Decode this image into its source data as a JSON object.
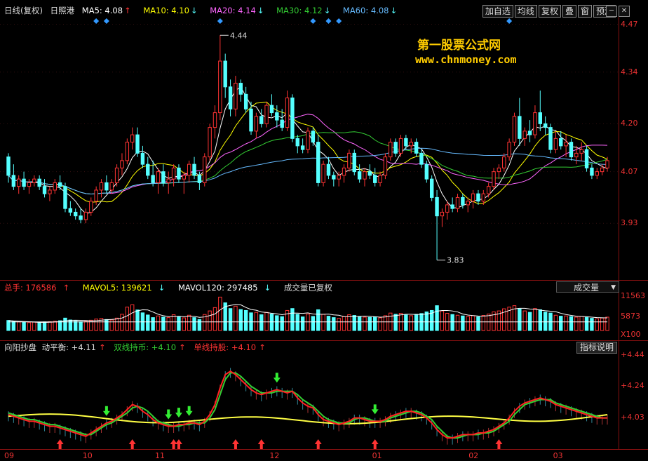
{
  "header": {
    "period": "日线(复权)",
    "stock": "日照港",
    "ma5": "MA5: 4.08",
    "ma10": "MA10: 4.10",
    "ma20": "MA20: 4.14",
    "ma30": "MA30: 4.12",
    "ma60": "MA60: 4.08",
    "arrow_up": "↑",
    "arrow_down": "↓"
  },
  "toolbar": {
    "add_watch": "加自选",
    "ma_lines": "均线",
    "adjust": "复权",
    "overlay": "叠",
    "window": "窗",
    "forecast": "预测"
  },
  "watermark": {
    "line1": "第一股票公式网",
    "line2": "www.chnmoney.com"
  },
  "volume_panel": {
    "total": "总手: 176586",
    "mavol5": "MAVOL5: 139621",
    "mavol120": "MAVOL120: 297485",
    "note": "成交量已复权",
    "selector": "成交量",
    "axis": [
      "11563",
      "5873",
      "X100"
    ]
  },
  "indicator_panel": {
    "name": "向阳抄盘",
    "dyn": "动平衡: +4.11",
    "double": "双线持币: +4.10",
    "single": "单线持股: +4.10",
    "explain_button": "指标说明",
    "axis": [
      "+4.44",
      "+4.24",
      "+4.03"
    ]
  },
  "x_labels": [
    "09",
    "10",
    "11",
    "12",
    "01",
    "02",
    "03"
  ],
  "colors": {
    "up": "#ff3333",
    "down": "#55ffff",
    "ma5": "#ffffff",
    "ma10": "#ffff00",
    "ma20": "#ff66ff",
    "ma30": "#33cc33",
    "ma60": "#66bbff",
    "panel_border": "#8b1111",
    "diamond": "#3399ff"
  },
  "chart_data": {
    "type": "candlestick",
    "ylim": [
      3.78,
      4.49
    ],
    "yticks": [
      4.47,
      4.34,
      4.2,
      4.07,
      3.93
    ],
    "max_marker": "4.44",
    "min_marker": "3.83",
    "candles": [
      [
        4.11,
        4.12,
        4.04,
        4.06
      ],
      [
        4.06,
        4.09,
        4.02,
        4.03
      ],
      [
        4.03,
        4.06,
        4.01,
        4.05
      ],
      [
        4.05,
        4.07,
        4.02,
        4.03
      ],
      [
        4.03,
        4.05,
        4.01,
        4.04
      ],
      [
        4.04,
        4.06,
        4.03,
        4.05
      ],
      [
        4.05,
        4.06,
        4.02,
        4.03
      ],
      [
        4.03,
        4.05,
        4.0,
        4.01
      ],
      [
        4.01,
        4.03,
        3.99,
        4.02
      ],
      [
        4.02,
        4.05,
        4.01,
        4.04
      ],
      [
        4.04,
        4.06,
        4.02,
        4.03
      ],
      [
        4.03,
        4.04,
        3.96,
        3.97
      ],
      [
        3.97,
        3.99,
        3.95,
        3.96
      ],
      [
        3.96,
        3.97,
        3.94,
        3.95
      ],
      [
        3.95,
        3.97,
        3.93,
        3.94
      ],
      [
        3.94,
        3.97,
        3.93,
        3.96
      ],
      [
        3.96,
        4.0,
        3.95,
        3.99
      ],
      [
        3.99,
        4.03,
        3.98,
        4.02
      ],
      [
        4.02,
        4.05,
        4.0,
        4.04
      ],
      [
        4.04,
        4.06,
        4.01,
        4.02
      ],
      [
        4.02,
        4.05,
        4.01,
        4.04
      ],
      [
        4.04,
        4.09,
        4.03,
        4.08
      ],
      [
        4.08,
        4.12,
        4.06,
        4.1
      ],
      [
        4.1,
        4.16,
        4.09,
        4.15
      ],
      [
        4.15,
        4.19,
        4.13,
        4.17
      ],
      [
        4.17,
        4.19,
        4.11,
        4.12
      ],
      [
        4.12,
        4.14,
        4.08,
        4.09
      ],
      [
        4.09,
        4.11,
        4.05,
        4.06
      ],
      [
        4.06,
        4.1,
        4.03,
        4.04
      ],
      [
        4.04,
        4.08,
        4.01,
        4.07
      ],
      [
        4.07,
        4.09,
        4.03,
        4.04
      ],
      [
        4.04,
        4.07,
        4.01,
        4.05
      ],
      [
        4.05,
        4.09,
        4.03,
        4.08
      ],
      [
        4.08,
        4.09,
        4.04,
        4.05
      ],
      [
        4.05,
        4.07,
        4.01,
        4.06
      ],
      [
        4.06,
        4.1,
        4.04,
        4.09
      ],
      [
        4.09,
        4.11,
        4.05,
        4.06
      ],
      [
        4.06,
        4.07,
        4.02,
        4.04
      ],
      [
        4.04,
        4.12,
        4.03,
        4.11
      ],
      [
        4.11,
        4.2,
        4.1,
        4.19
      ],
      [
        4.19,
        4.25,
        4.16,
        4.23
      ],
      [
        4.23,
        4.44,
        4.21,
        4.37
      ],
      [
        4.37,
        4.39,
        4.27,
        4.3
      ],
      [
        4.3,
        4.32,
        4.22,
        4.24
      ],
      [
        4.24,
        4.33,
        4.22,
        4.31
      ],
      [
        4.31,
        4.32,
        4.26,
        4.28
      ],
      [
        4.28,
        4.3,
        4.23,
        4.24
      ],
      [
        4.24,
        4.26,
        4.17,
        4.18
      ],
      [
        4.18,
        4.23,
        4.16,
        4.22
      ],
      [
        4.22,
        4.24,
        4.19,
        4.2
      ],
      [
        4.2,
        4.26,
        4.19,
        4.25
      ],
      [
        4.25,
        4.28,
        4.22,
        4.23
      ],
      [
        4.23,
        4.25,
        4.19,
        4.21
      ],
      [
        4.21,
        4.24,
        4.18,
        4.19
      ],
      [
        4.19,
        4.29,
        4.18,
        4.27
      ],
      [
        4.27,
        4.28,
        4.15,
        4.16
      ],
      [
        4.16,
        4.17,
        4.12,
        4.14
      ],
      [
        4.14,
        4.16,
        4.12,
        4.13
      ],
      [
        4.13,
        4.19,
        4.12,
        4.18
      ],
      [
        4.18,
        4.19,
        4.14,
        4.15
      ],
      [
        4.15,
        4.17,
        4.03,
        4.04
      ],
      [
        4.04,
        4.1,
        4.03,
        4.09
      ],
      [
        4.09,
        4.11,
        4.05,
        4.06
      ],
      [
        4.06,
        4.07,
        4.03,
        4.05
      ],
      [
        4.05,
        4.07,
        4.03,
        4.06
      ],
      [
        4.06,
        4.09,
        4.04,
        4.08
      ],
      [
        4.08,
        4.13,
        4.07,
        4.12
      ],
      [
        4.12,
        4.13,
        4.06,
        4.07
      ],
      [
        4.07,
        4.09,
        4.04,
        4.05
      ],
      [
        4.05,
        4.08,
        4.03,
        4.07
      ],
      [
        4.07,
        4.09,
        4.05,
        4.06
      ],
      [
        4.06,
        4.08,
        4.03,
        4.04
      ],
      [
        4.04,
        4.07,
        4.03,
        4.06
      ],
      [
        4.06,
        4.12,
        4.05,
        4.11
      ],
      [
        4.11,
        4.16,
        4.1,
        4.15
      ],
      [
        4.15,
        4.16,
        4.11,
        4.12
      ],
      [
        4.12,
        4.17,
        4.11,
        4.16
      ],
      [
        4.16,
        4.17,
        4.13,
        4.14
      ],
      [
        4.14,
        4.16,
        4.12,
        4.15
      ],
      [
        4.15,
        4.16,
        4.11,
        4.12
      ],
      [
        4.12,
        4.13,
        4.08,
        4.09
      ],
      [
        4.09,
        4.1,
        4.04,
        4.05
      ],
      [
        4.05,
        4.06,
        3.99,
        4.0
      ],
      [
        4.0,
        4.02,
        3.83,
        3.95
      ],
      [
        3.95,
        3.97,
        3.92,
        3.96
      ],
      [
        3.96,
        3.99,
        3.94,
        3.98
      ],
      [
        3.98,
        4.0,
        3.96,
        3.97
      ],
      [
        3.97,
        4.01,
        3.96,
        4.0
      ],
      [
        4.0,
        4.01,
        3.97,
        3.98
      ],
      [
        3.98,
        4.0,
        3.96,
        3.99
      ],
      [
        3.99,
        4.02,
        3.97,
        4.01
      ],
      [
        4.01,
        4.02,
        3.98,
        3.99
      ],
      [
        3.99,
        4.02,
        3.98,
        4.01
      ],
      [
        4.01,
        4.04,
        4.0,
        4.03
      ],
      [
        4.03,
        4.08,
        4.02,
        4.07
      ],
      [
        4.07,
        4.09,
        4.05,
        4.08
      ],
      [
        4.08,
        4.12,
        4.07,
        4.11
      ],
      [
        4.11,
        4.16,
        4.1,
        4.15
      ],
      [
        4.15,
        4.23,
        4.14,
        4.22
      ],
      [
        4.22,
        4.27,
        4.14,
        4.16
      ],
      [
        4.16,
        4.19,
        4.14,
        4.18
      ],
      [
        4.18,
        4.21,
        4.15,
        4.17
      ],
      [
        4.17,
        4.25,
        4.16,
        4.23
      ],
      [
        4.23,
        4.29,
        4.18,
        4.2
      ],
      [
        4.2,
        4.22,
        4.17,
        4.19
      ],
      [
        4.19,
        4.2,
        4.12,
        4.13
      ],
      [
        4.13,
        4.18,
        4.12,
        4.16
      ],
      [
        4.16,
        4.18,
        4.13,
        4.14
      ],
      [
        4.14,
        4.17,
        4.11,
        4.15
      ],
      [
        4.15,
        4.16,
        4.1,
        4.11
      ],
      [
        4.11,
        4.14,
        4.09,
        4.12
      ],
      [
        4.12,
        4.15,
        4.1,
        4.13
      ],
      [
        4.13,
        4.14,
        4.07,
        4.08
      ],
      [
        4.08,
        4.09,
        4.05,
        4.06
      ],
      [
        4.06,
        4.08,
        4.05,
        4.07
      ],
      [
        4.07,
        4.09,
        4.06,
        4.08
      ],
      [
        4.08,
        4.11,
        4.07,
        4.1
      ]
    ],
    "volume": {
      "ylim": [
        0,
        15000
      ],
      "values": [
        4200,
        3800,
        3600,
        3400,
        3300,
        3500,
        3200,
        3600,
        3700,
        3900,
        4100,
        5200,
        4400,
        3900,
        3700,
        3800,
        4300,
        4800,
        5100,
        4600,
        4400,
        5200,
        6800,
        9800,
        10800,
        8600,
        7400,
        6500,
        5400,
        6100,
        5600,
        5400,
        6600,
        5900,
        5300,
        6400,
        5400,
        4600,
        6700,
        8200,
        9600,
        14000,
        11600,
        9200,
        10200,
        8800,
        8400,
        7400,
        7600,
        6600,
        7600,
        6900,
        6200,
        5800,
        8400,
        9200,
        6800,
        5700,
        6900,
        5900,
        8700,
        6800,
        6000,
        5400,
        5100,
        5800,
        6600,
        6300,
        5800,
        5600,
        5500,
        5700,
        5300,
        6200,
        7300,
        6800,
        7200,
        6500,
        6200,
        6800,
        7100,
        7800,
        8400,
        10400,
        8200,
        7200,
        6700,
        6400,
        6100,
        5900,
        6200,
        5700,
        6300,
        6900,
        7800,
        8200,
        9100,
        9800,
        10400,
        9000,
        8200,
        7600,
        9200,
        8700,
        7700,
        7300,
        6400,
        6000,
        6100,
        5800,
        5600,
        5900,
        5500,
        5100,
        4900,
        5200,
        5600
      ]
    },
    "indicator": {
      "ylim": [
        3.93,
        4.49
      ],
      "red": [
        4.12,
        4.11,
        4.1,
        4.09,
        4.08,
        4.08,
        4.07,
        4.06,
        4.05,
        4.05,
        4.04,
        4.03,
        4.02,
        4.01,
        4.0,
        3.99,
        4.01,
        4.03,
        4.05,
        4.07,
        4.08,
        4.1,
        4.12,
        4.15,
        4.18,
        4.17,
        4.14,
        4.12,
        4.09,
        4.07,
        4.06,
        4.05,
        4.05,
        4.06,
        4.06,
        4.07,
        4.07,
        4.06,
        4.08,
        4.12,
        4.18,
        4.28,
        4.36,
        4.38,
        4.36,
        4.33,
        4.3,
        4.27,
        4.25,
        4.24,
        4.25,
        4.26,
        4.27,
        4.26,
        4.25,
        4.26,
        4.22,
        4.19,
        4.17,
        4.16,
        4.12,
        4.09,
        4.08,
        4.07,
        4.06,
        4.07,
        4.08,
        4.1,
        4.1,
        4.09,
        4.08,
        4.08,
        4.08,
        4.09,
        4.11,
        4.12,
        4.13,
        4.14,
        4.14,
        4.13,
        4.12,
        4.1,
        4.07,
        4.03,
        4.0,
        3.98,
        3.98,
        3.99,
        4.0,
        4.0,
        4.0,
        4.01,
        4.01,
        4.02,
        4.03,
        4.05,
        4.07,
        4.1,
        4.14,
        4.17,
        4.19,
        4.2,
        4.21,
        4.22,
        4.21,
        4.2,
        4.18,
        4.17,
        4.16,
        4.15,
        4.14,
        4.13,
        4.12,
        4.11,
        4.1,
        4.1,
        4.1
      ],
      "green": [
        4.13,
        4.12,
        4.11,
        4.1,
        4.09,
        4.09,
        4.08,
        4.07,
        4.06,
        4.06,
        4.05,
        4.04,
        4.03,
        4.02,
        4.01,
        4.0,
        4.0,
        4.02,
        4.04,
        4.06,
        4.07,
        4.09,
        4.11,
        4.13,
        4.16,
        4.17,
        4.16,
        4.14,
        4.11,
        4.08,
        4.07,
        4.06,
        4.05,
        4.05,
        4.06,
        4.06,
        4.07,
        4.07,
        4.07,
        4.1,
        4.15,
        4.24,
        4.33,
        4.37,
        4.37,
        4.35,
        4.32,
        4.29,
        4.27,
        4.25,
        4.25,
        4.25,
        4.26,
        4.26,
        4.26,
        4.26,
        4.24,
        4.21,
        4.19,
        4.17,
        4.14,
        4.11,
        4.09,
        4.08,
        4.07,
        4.07,
        4.07,
        4.09,
        4.1,
        4.1,
        4.09,
        4.08,
        4.08,
        4.08,
        4.1,
        4.11,
        4.12,
        4.13,
        4.14,
        4.14,
        4.13,
        4.11,
        4.09,
        4.05,
        4.02,
        3.99,
        3.98,
        3.98,
        3.99,
        4.0,
        4.0,
        4.0,
        4.01,
        4.01,
        4.02,
        4.04,
        4.06,
        4.08,
        4.12,
        4.15,
        4.18,
        4.19,
        4.2,
        4.21,
        4.21,
        4.21,
        4.19,
        4.18,
        4.17,
        4.16,
        4.15,
        4.14,
        4.13,
        4.12,
        4.11,
        4.1,
        4.1
      ],
      "yellow_start": 4.11,
      "yellow_mid": 4.06,
      "yellow_end": 4.11,
      "up_arrows": [
        10,
        24,
        32,
        33,
        44,
        49,
        60,
        71,
        95
      ],
      "down_arrows": [
        19,
        31,
        33,
        35,
        52,
        71
      ]
    }
  }
}
